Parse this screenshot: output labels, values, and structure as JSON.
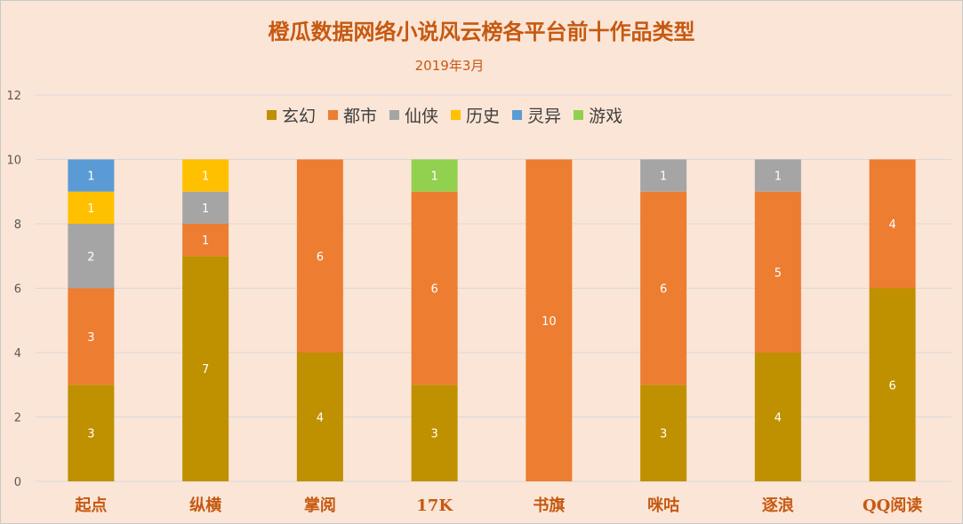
{
  "title": "橙瓜数据网络小说风云榜各平台前十作品类型",
  "subtitle": "2019年3月",
  "chart_data": {
    "type": "bar",
    "stacked": true,
    "categories": [
      "起点",
      "纵横",
      "掌阅",
      "17K",
      "书旗",
      "咪咕",
      "逐浪",
      "QQ阅读"
    ],
    "series": [
      {
        "name": "玄幻",
        "color": "#bf9000",
        "values": [
          3,
          7,
          4,
          3,
          0,
          3,
          4,
          6
        ]
      },
      {
        "name": "都市",
        "color": "#ed7d31",
        "values": [
          3,
          1,
          6,
          6,
          10,
          6,
          5,
          4
        ]
      },
      {
        "name": "仙侠",
        "color": "#a5a5a5",
        "values": [
          2,
          1,
          0,
          0,
          0,
          1,
          1,
          0
        ]
      },
      {
        "name": "历史",
        "color": "#ffc000",
        "values": [
          1,
          1,
          0,
          0,
          0,
          0,
          0,
          0
        ]
      },
      {
        "name": "灵异",
        "color": "#5b9bd5",
        "values": [
          1,
          0,
          0,
          0,
          0,
          0,
          0,
          0
        ]
      },
      {
        "name": "游戏",
        "color": "#92d050",
        "values": [
          0,
          0,
          0,
          1,
          0,
          0,
          0,
          0
        ]
      }
    ],
    "yticks": [
      0,
      2,
      4,
      6,
      8,
      10,
      12
    ],
    "ylim": [
      0,
      12
    ],
    "grid": true,
    "legend": "top",
    "tick_color": "#595959",
    "category_label_color": "#c65911",
    "gridline_color": "#d9d9d9",
    "data_label_color": "#ffffff"
  }
}
